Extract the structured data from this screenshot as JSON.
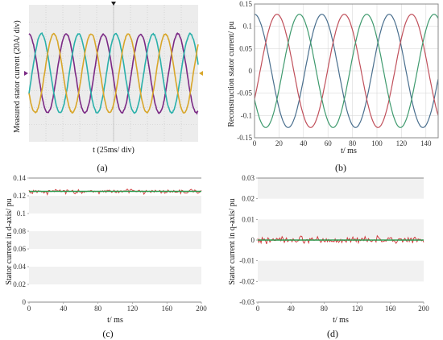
{
  "colors": {
    "scope_bg": "#ececec",
    "scope_grid": "#c7c7c7",
    "phase_purple": "#7b2a85",
    "phase_cyan": "#2ab0aa",
    "phase_yellow": "#d8a62a",
    "recon_red": "#c0505b",
    "recon_green": "#3f9a6e",
    "recon_blue": "#4a6f8e",
    "dq_measured": "#cc3333",
    "dq_reference": "#2e9a4e",
    "band": "#f1f1f1"
  },
  "panels": {
    "a": {
      "caption": "(a)",
      "xlabel": "t (25ms/ div)",
      "ylabel": "Measured stator current (20A/ div)"
    },
    "b": {
      "caption": "(b)",
      "xlabel": "t/ ms",
      "ylabel": "Reconstruction stator current/ pu"
    },
    "c": {
      "caption": "(c)",
      "xlabel": "t/ ms",
      "ylabel": "Stator current in d-axis/ pu"
    },
    "d": {
      "caption": "(d)",
      "xlabel": "t/ ms",
      "ylabel": "Stator current in q-axis/ pu"
    }
  },
  "chart_data": [
    {
      "id": "a",
      "type": "line",
      "title": "",
      "xlabel": "t (25ms/ div)",
      "ylabel": "Measured stator current (20A/ div)",
      "xlim": [
        0,
        10
      ],
      "ylim": [
        -4,
        4
      ],
      "x_unit": "div (25 ms/div)",
      "y_unit": "div (20 A/div)",
      "grid": true,
      "series": [
        {
          "amplitude_div": 2.3,
          "period_div": 2.2,
          "phase_deg": 90,
          "color": "#7b2a85"
        },
        {
          "amplitude_div": 2.3,
          "period_div": 2.2,
          "phase_deg": -30,
          "color": "#2ab0aa"
        },
        {
          "amplitude_div": 2.3,
          "period_div": 2.2,
          "phase_deg": 210,
          "color": "#d8a62a"
        }
      ]
    },
    {
      "id": "b",
      "type": "line",
      "title": "",
      "xlabel": "t/ ms",
      "ylabel": "Reconstruction stator current/ pu",
      "xlim": [
        0,
        150
      ],
      "ylim": [
        -0.15,
        0.15
      ],
      "xticks": [
        "0",
        "20",
        "40",
        "60",
        "80",
        "100",
        "120",
        "140"
      ],
      "yticks": [
        "-0.15",
        "-0.1",
        "-0.05",
        "0",
        "0.05",
        "0.1",
        "0.15"
      ],
      "grid": true,
      "series": [
        {
          "amplitude": 0.127,
          "period_ms": 55,
          "phase_deg": 90,
          "color": "#4a6f8e"
        },
        {
          "amplitude": 0.127,
          "period_ms": 55,
          "phase_deg": -30,
          "color": "#c0505b"
        },
        {
          "amplitude": 0.127,
          "period_ms": 55,
          "phase_deg": 210,
          "color": "#3f9a6e"
        }
      ]
    },
    {
      "id": "c",
      "type": "line",
      "title": "",
      "xlabel": "t/ ms",
      "ylabel": "Stator current in d-axis/ pu",
      "xlim": [
        0,
        200
      ],
      "ylim": [
        0,
        0.14
      ],
      "xticks": [
        "0",
        "40",
        "80",
        "120",
        "160",
        "200"
      ],
      "yticks": [
        "0",
        "0.02",
        "0.04",
        "0.06",
        "0.08",
        "0.1",
        "0.12",
        "0.14"
      ],
      "grid": false,
      "series": [
        {
          "role": "reference",
          "constant": 0.125,
          "color": "#2e9a4e"
        },
        {
          "role": "measured",
          "mean": 0.125,
          "noise_pu": 0.004,
          "color": "#cc3333"
        }
      ]
    },
    {
      "id": "d",
      "type": "line",
      "title": "",
      "xlabel": "t/ ms",
      "ylabel": "Stator current in q-axis/ pu",
      "xlim": [
        0,
        200
      ],
      "ylim": [
        -0.03,
        0.03
      ],
      "xticks": [
        "0",
        "40",
        "80",
        "120",
        "160",
        "200"
      ],
      "yticks": [
        "-0.03",
        "-0.02",
        "-0.01",
        "0",
        "0.01",
        "0.02",
        "0.03"
      ],
      "grid": false,
      "series": [
        {
          "role": "reference",
          "constant": 0,
          "color": "#2e9a4e"
        },
        {
          "role": "measured",
          "mean": 0,
          "noise_pu": 0.0025,
          "color": "#cc3333"
        }
      ]
    }
  ]
}
